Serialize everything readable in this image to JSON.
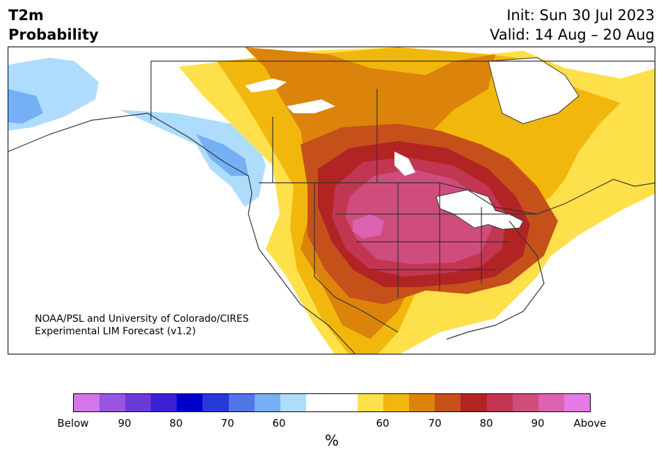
{
  "title": {
    "line1": "T2m",
    "line2": "Probability"
  },
  "subtitle": {
    "init": "Init: Sun 30 Jul 2023",
    "valid": "Valid: 14 Aug – 20 Aug"
  },
  "credit": {
    "line1": "NOAA/PSL and University of Colorado/CIRES",
    "line2": "Experimental LIM Forecast (v1.2)"
  },
  "colorbar": {
    "label": "%",
    "colors": [
      "#d475ec",
      "#9a55e0",
      "#6a3ad8",
      "#3a1fd6",
      "#0000cc",
      "#2839d8",
      "#5276e8",
      "#76b0f4",
      "#aedcfc",
      "#ffffff",
      "#ffffff",
      "#fee04a",
      "#f2b70c",
      "#dc830c",
      "#c6501a",
      "#b22424",
      "#c13752",
      "#cf4d7d",
      "#dc62b2",
      "#e77ae4"
    ],
    "ticks": [
      "Below",
      "90",
      "80",
      "70",
      "60",
      "60",
      "70",
      "80",
      "90",
      "Above"
    ]
  },
  "palette": {
    "p55": "#fee04a",
    "p60": "#f2b70c",
    "p65": "#dc830c",
    "p70": "#c6501a",
    "p75": "#b22424",
    "p80": "#c13752",
    "p85": "#cf4d7d",
    "p90": "#dc62b2",
    "n55": "#aedcfc",
    "n60": "#76b0f4"
  }
}
